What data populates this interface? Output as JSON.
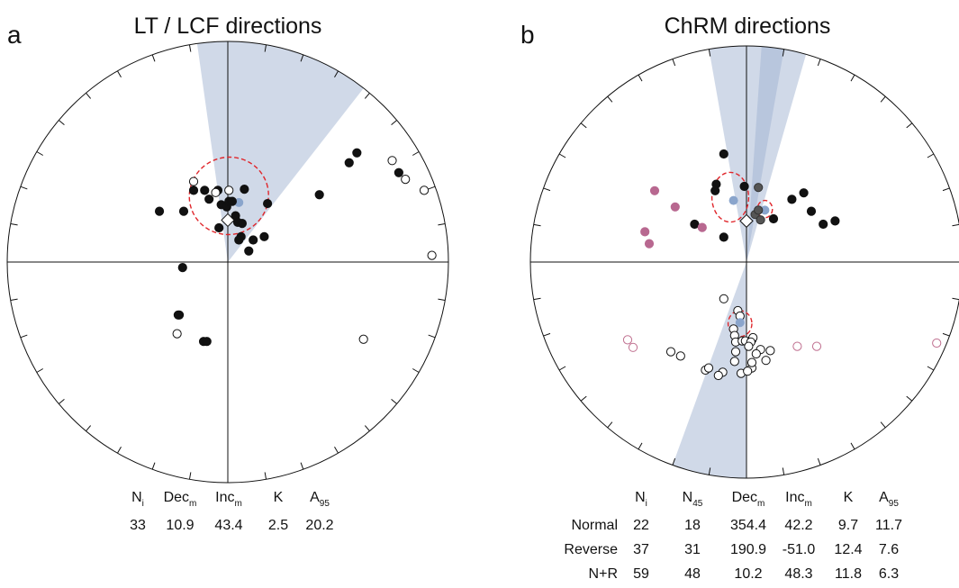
{
  "colors": {
    "cone": "#a9b9d6",
    "confidence_ellipse": "#e0262b",
    "mean_point": "#8aa5cc",
    "filled_point": "#111111",
    "open_point_stroke": "#111111",
    "grey_point": "#555555",
    "pink_filled": "#b86890",
    "pink_open": "#c07090"
  },
  "chart_data": [
    {
      "type": "scatter",
      "panel": "a",
      "title": "LT / LCF directions",
      "projection": "equal-area stereonet",
      "axes": {
        "x": "east",
        "y": "north",
        "range": [
          -1,
          1
        ],
        "grid": false
      },
      "stats_table": {
        "headers": [
          {
            "main": "N",
            "sub": "i"
          },
          {
            "main": "Dec",
            "sub": "m"
          },
          {
            "main": "Inc",
            "sub": "m"
          },
          {
            "main": "K",
            "sub": ""
          },
          {
            "main": "A",
            "sub": "95"
          }
        ],
        "rows": [
          {
            "label": "",
            "values": [
              "33",
              "10.9",
              "43.4",
              "2.5",
              "20.2"
            ]
          }
        ]
      },
      "series": [
        {
          "role": "filled",
          "marker": "filled-circle",
          "x": [
            -0.62,
            -0.31,
            -0.21,
            -0.17,
            -0.09,
            -0.08,
            -0.06,
            -0.01,
            0.01,
            0.04,
            0.07,
            0.09,
            0.13,
            0.12,
            0.1,
            0.19,
            0.23,
            0.33,
            -0.4,
            -0.44,
            -0.22,
            0.15,
            0.36,
            0.83,
            1.17,
            1.1,
            1.55
          ],
          "y": [
            0.46,
            0.65,
            0.65,
            0.57,
            0.65,
            0.31,
            0.52,
            0.5,
            0.55,
            0.55,
            0.42,
            0.36,
            0.35,
            0.23,
            0.2,
            0.1,
            0.2,
            0.23,
            0.46,
            -0.48,
            -0.72,
            0.66,
            0.53,
            0.61,
            0.99,
            0.9,
            0.81
          ]
        },
        {
          "role": "open",
          "marker": "open-circle",
          "x": [
            -0.31,
            -0.11,
            0.01,
            1.49,
            1.61,
            1.78,
            1.85,
            -0.46,
            1.23
          ],
          "y": [
            0.73,
            0.63,
            0.65,
            0.92,
            0.75,
            0.65,
            0.06,
            -0.65,
            -0.7
          ]
        },
        {
          "role": "converted",
          "note": "filled points in panel not on the main cloud",
          "marker": "filled-circle",
          "x": [
            -0.41,
            -0.45,
            -0.19
          ],
          "y": [
            -0.05,
            -0.48,
            -0.72
          ]
        }
      ],
      "overlays": {
        "cone": {
          "left_edge_deg": -8,
          "right_edge_deg": 38
        },
        "mean": {
          "x": 0.1,
          "y": 0.54
        },
        "ellipse": {
          "cx": 0.01,
          "cy": 0.6,
          "rx": 0.36,
          "ry": 0.35,
          "rotate_deg": -18
        },
        "diamond": {
          "x": 0.0,
          "y": 0.38
        }
      }
    },
    {
      "type": "scatter",
      "panel": "b",
      "title": "ChRM directions",
      "projection": "equal-area stereonet",
      "axes": {
        "x": "east",
        "y": "north",
        "range": [
          -1,
          1
        ],
        "grid": false
      },
      "stats_table": {
        "headers": [
          {
            "main": "",
            "sub": ""
          },
          {
            "main": "N",
            "sub": "i"
          },
          {
            "main": "N",
            "sub": "45"
          },
          {
            "main": "Dec",
            "sub": "m"
          },
          {
            "main": "Inc",
            "sub": "m"
          },
          {
            "main": "K",
            "sub": ""
          },
          {
            "main": "A",
            "sub": "95"
          }
        ],
        "rows": [
          {
            "label": "Normal",
            "values": [
              "22",
              "18",
              "354.4",
              "42.2",
              "9.7",
              "11.7"
            ]
          },
          {
            "label": "Reverse",
            "values": [
              "37",
              "31",
              "190.9",
              "-51.0",
              "12.4",
              "7.6"
            ]
          },
          {
            "label": "N+R",
            "values": [
              "59",
              "48",
              "10.2",
              "48.3",
              "11.8",
              "6.3"
            ]
          }
        ]
      },
      "series": [
        {
          "role": "normal-filled",
          "marker": "filled-circle",
          "x": [
            -0.21,
            -0.28,
            -0.29,
            -0.02,
            -0.48,
            -0.21,
            0.25,
            0.53,
            0.42,
            0.6,
            0.82,
            0.71
          ],
          "y": [
            1.0,
            0.72,
            0.66,
            0.7,
            0.35,
            0.23,
            0.4,
            0.64,
            0.58,
            0.47,
            0.38,
            0.35
          ]
        },
        {
          "role": "normal-grey",
          "marker": "grey-circle",
          "x": [
            0.11,
            0.08,
            0.11,
            0.13
          ],
          "y": [
            0.69,
            0.44,
            0.48,
            0.39
          ]
        },
        {
          "role": "normal-pink",
          "marker": "pink-filled-circle",
          "x": [
            -0.85,
            -0.66,
            -0.94,
            -0.9,
            -0.41
          ],
          "y": [
            0.66,
            0.51,
            0.28,
            0.17,
            0.32
          ]
        },
        {
          "role": "reverse-open",
          "marker": "open-circle",
          "x": [
            -0.21,
            -0.08,
            -0.06,
            -0.12,
            -0.11,
            -0.1,
            -0.04,
            -0.01,
            0.05,
            0.06,
            0.04,
            0.02,
            0.13,
            0.22,
            -0.7,
            -0.61,
            -0.1,
            -0.11,
            -0.22,
            -0.26,
            -0.38,
            -0.35,
            -0.05,
            0.05,
            0.01,
            0.09,
            0.18,
            0.05
          ],
          "y": [
            -0.34,
            -0.45,
            -0.5,
            -0.62,
            -0.68,
            -0.74,
            -0.73,
            -0.73,
            -0.72,
            -0.7,
            -0.74,
            -0.78,
            -0.81,
            -0.82,
            -0.83,
            -0.87,
            -0.83,
            -0.92,
            -1.02,
            -1.05,
            -1.0,
            -0.98,
            -1.03,
            -0.98,
            -1.01,
            -0.85,
            -0.91,
            -0.93
          ]
        },
        {
          "role": "reverse-open-pink",
          "marker": "pink-open-circle",
          "x": [
            -1.1,
            -1.05,
            0.47,
            0.65,
            1.76
          ],
          "y": [
            -0.72,
            -0.79,
            -0.78,
            -0.78,
            -0.75
          ]
        }
      ],
      "overlays": {
        "cone_normal": {
          "left_edge_deg": -10,
          "right_edge_deg": 16
        },
        "cone_normal_inner": {
          "left_edge_deg": 4,
          "right_edge_deg": 10
        },
        "cone_reverse": {
          "left_edge_deg": 180,
          "right_edge_deg": 200
        },
        "mean_normal": {
          "x": -0.12,
          "y": 0.57
        },
        "mean_nr": {
          "x": 0.17,
          "y": 0.48
        },
        "ellipse_normal": {
          "cx": -0.15,
          "cy": 0.6,
          "rx": 0.17,
          "ry": 0.23,
          "rotate_deg": 0
        },
        "ellipse_nr": {
          "cx": 0.17,
          "cy": 0.49,
          "rx": 0.07,
          "ry": 0.08,
          "rotate_deg": 0
        },
        "ellipse_reverse": {
          "cx": -0.06,
          "cy": -0.57,
          "rx": 0.11,
          "ry": 0.12,
          "rotate_deg": 0
        },
        "mean_reverse": {
          "x": -0.06,
          "y": -0.56
        },
        "diamond": {
          "x": 0.0,
          "y": 0.38
        }
      }
    }
  ]
}
